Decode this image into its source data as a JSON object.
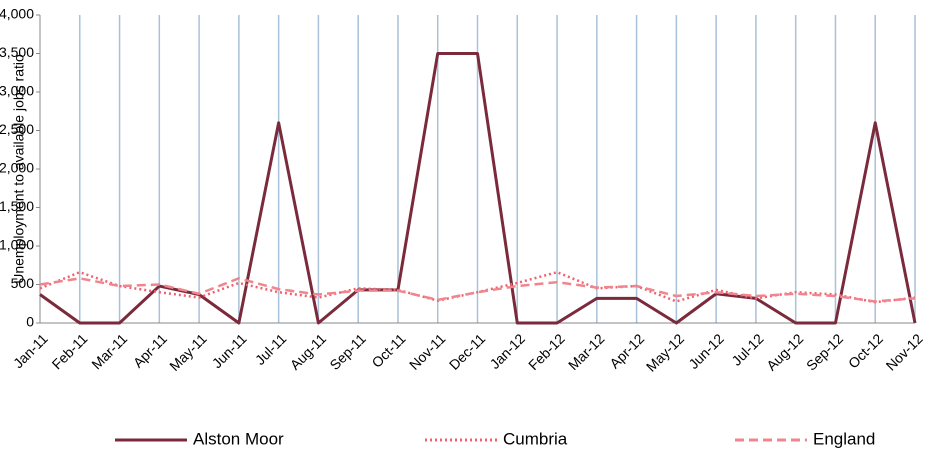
{
  "chart_data": {
    "type": "line",
    "ylabel": "Unemployment to available jobs ratio",
    "categories": [
      "Jan-11",
      "Feb-11",
      "Mar-11",
      "Apr-11",
      "May-11",
      "Jun-11",
      "Jul-11",
      "Aug-11",
      "Sep-11",
      "Oct-11",
      "Nov-11",
      "Dec-11",
      "Jan-12",
      "Feb-12",
      "Mar-12",
      "Apr-12",
      "May-12",
      "Jun-12",
      "Jul-12",
      "Aug-12",
      "Sep-12",
      "Oct-12",
      "Nov-12"
    ],
    "series": [
      {
        "name": "Alston Moor",
        "color": "#7b2a3c",
        "style": "solid",
        "values": [
          370,
          0,
          0,
          480,
          370,
          0,
          2600,
          0,
          430,
          430,
          3500,
          3500,
          0,
          0,
          320,
          320,
          0,
          380,
          320,
          0,
          0,
          2600,
          0
        ]
      },
      {
        "name": "Cumbria",
        "color": "#f0606e",
        "style": "dotted",
        "values": [
          450,
          660,
          480,
          400,
          330,
          520,
          400,
          330,
          450,
          430,
          290,
          400,
          520,
          660,
          450,
          480,
          280,
          430,
          320,
          400,
          370,
          270,
          330
        ]
      },
      {
        "name": "England",
        "color": "#f0858e",
        "style": "dashed",
        "values": [
          500,
          580,
          480,
          500,
          380,
          580,
          440,
          370,
          420,
          420,
          300,
          400,
          480,
          530,
          460,
          480,
          350,
          400,
          350,
          380,
          350,
          280,
          320
        ]
      }
    ],
    "ylim": [
      0,
      4000
    ],
    "yticks": [
      0,
      500,
      {
        "value": 1000,
        "label": "1,000"
      },
      {
        "value": 1500,
        "label": "1,500"
      },
      {
        "value": 2000,
        "label": "2,000"
      },
      {
        "value": 2500,
        "label": "2,500"
      },
      {
        "value": 3000,
        "label": "3,000"
      },
      {
        "value": 3500,
        "label": "3,500"
      },
      {
        "value": 4000,
        "label": "4,000"
      }
    ],
    "grid": "vertical",
    "legend": "bottom"
  }
}
